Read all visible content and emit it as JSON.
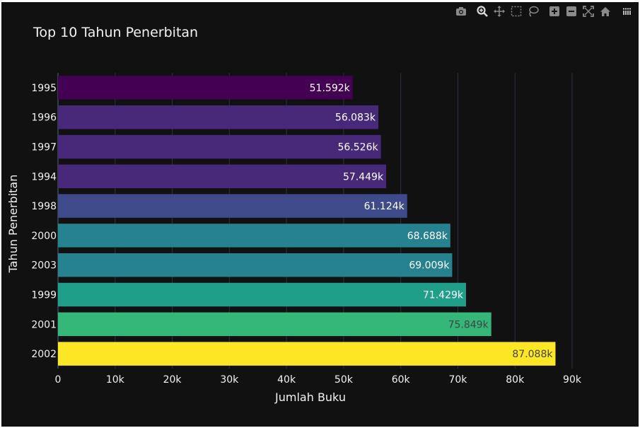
{
  "chart_data": {
    "type": "bar",
    "orientation": "horizontal",
    "title": "Top 10 Tahun Penerbitan",
    "xlabel": "Jumlah Buku",
    "ylabel": "Tahun Penerbitan",
    "categories": [
      "1995",
      "1996",
      "1997",
      "1994",
      "1998",
      "2000",
      "2003",
      "1999",
      "2001",
      "2002"
    ],
    "values": [
      51592,
      56083,
      56526,
      57449,
      61124,
      68688,
      69009,
      71429,
      75849,
      87088
    ],
    "data_labels": [
      "51.592k",
      "56.083k",
      "56.526k",
      "57.449k",
      "61.124k",
      "68.688k",
      "69.009k",
      "71.429k",
      "75.849k",
      "87.088k"
    ],
    "xlim": [
      0,
      90000
    ],
    "xticks": [
      0,
      10000,
      20000,
      30000,
      40000,
      50000,
      60000,
      70000,
      80000,
      90000
    ],
    "xtick_labels": [
      "0",
      "10k",
      "20k",
      "30k",
      "40k",
      "50k",
      "60k",
      "70k",
      "80k",
      "90k"
    ],
    "bar_colors": [
      "#440154",
      "#482878",
      "#482878",
      "#482878",
      "#3e4a89",
      "#26828e",
      "#26828e",
      "#1f9e89",
      "#35b779",
      "#fde725"
    ],
    "label_colors": [
      "#ffffff",
      "#ffffff",
      "#ffffff",
      "#ffffff",
      "#ffffff",
      "#ffffff",
      "#ffffff",
      "#ffffff",
      "#444444",
      "#444444"
    ],
    "grid": true,
    "background": "#111111"
  },
  "modebar": {
    "icons": [
      "camera-icon",
      "zoom-icon",
      "pan-icon",
      "box-select-icon",
      "lasso-select-icon",
      "zoom-in-icon",
      "zoom-out-icon",
      "autoscale-icon",
      "reset-axes-icon",
      "plotly-logo-icon"
    ]
  }
}
